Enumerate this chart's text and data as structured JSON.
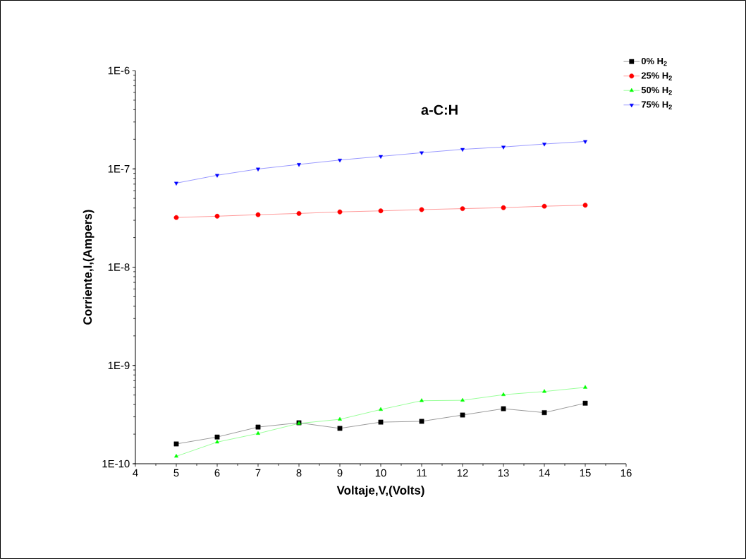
{
  "chart_data": {
    "type": "line",
    "title": "a-C:H",
    "xlabel": "Voltaje,V,(Volts)",
    "ylabel": "Corriente,I,(Ampers)",
    "x": [
      5,
      6,
      7,
      8,
      9,
      10,
      11,
      12,
      13,
      14,
      15
    ],
    "series": [
      {
        "name": "0% H$_{2}$",
        "color": "#000000",
        "marker": "square",
        "values": [
          1.59e-10,
          1.87e-10,
          2.36e-10,
          2.61e-10,
          2.29e-10,
          2.65e-10,
          2.7e-10,
          3.13e-10,
          3.63e-10,
          3.31e-10,
          4.13e-10
        ]
      },
      {
        "name": "25% H$_{2}$",
        "color": "#ff0000",
        "marker": "circle",
        "values": [
          3.2e-08,
          3.3e-08,
          3.42e-08,
          3.52e-08,
          3.65e-08,
          3.74e-08,
          3.85e-08,
          3.94e-08,
          4.03e-08,
          4.17e-08,
          4.27e-08
        ]
      },
      {
        "name": "50% H$_{2}$",
        "color": "#00ff00",
        "marker": "triangle",
        "values": [
          1.19e-10,
          1.66e-10,
          2.03e-10,
          2.57e-10,
          2.83e-10,
          3.56e-10,
          4.38e-10,
          4.42e-10,
          5.04e-10,
          5.43e-10,
          5.98e-10
        ]
      },
      {
        "name": "75% H$_{2}$",
        "color": "#0000ff",
        "marker": "triangle-down",
        "values": [
          7.16e-08,
          8.61e-08,
          9.97e-08,
          1.11e-07,
          1.23e-07,
          1.34e-07,
          1.46e-07,
          1.58e-07,
          1.67e-07,
          1.79e-07,
          1.9e-07
        ]
      }
    ],
    "xlim": [
      4,
      16
    ],
    "xticks": [
      4,
      5,
      6,
      7,
      8,
      9,
      10,
      11,
      12,
      13,
      14,
      15,
      16
    ],
    "ylim": [
      1e-10,
      1e-06
    ],
    "yticks": [
      {
        "value": 1e-10,
        "label": "1E-10"
      },
      {
        "value": 1e-09,
        "label": "1E-9"
      },
      {
        "value": 1e-08,
        "label": "1E-8"
      },
      {
        "value": 1e-07,
        "label": "1E-7"
      },
      {
        "value": 1e-06,
        "label": "1E-6"
      }
    ],
    "log": "y",
    "legend": "top right",
    "grid": false,
    "line_style": "solid"
  }
}
